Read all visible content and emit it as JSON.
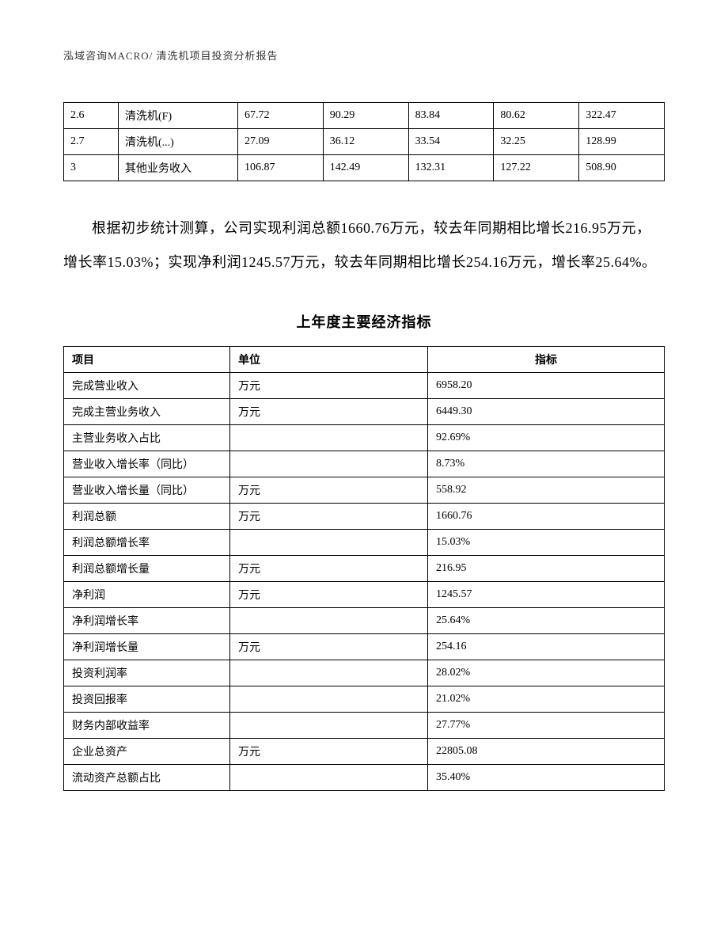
{
  "header": "泓域咨询MACRO/   清洗机项目投资分析报告",
  "table1": {
    "col_widths": [
      "64px",
      "140px",
      "100px",
      "100px",
      "100px",
      "100px",
      "100px"
    ],
    "rows": [
      [
        "2.6",
        "清洗机(F)",
        "67.72",
        "90.29",
        "83.84",
        "80.62",
        "322.47"
      ],
      [
        "2.7",
        "清洗机(...)",
        "27.09",
        "36.12",
        "33.54",
        "32.25",
        "128.99"
      ],
      [
        "3",
        "其他业务收入",
        "106.87",
        "142.49",
        "132.31",
        "127.22",
        "508.90"
      ]
    ]
  },
  "paragraph": "根据初步统计测算，公司实现利润总额1660.76万元，较去年同期相比增长216.95万元，增长率15.03%；实现净利润1245.57万元，较去年同期相比增长254.16万元，增长率25.64%。",
  "section_title": "上年度主要经济指标",
  "table2": {
    "headers": [
      "项目",
      "单位",
      "指标"
    ],
    "col_widths": [
      "210px",
      "250px",
      "auto"
    ],
    "rows": [
      [
        "完成营业收入",
        "万元",
        "6958.20"
      ],
      [
        "完成主营业务收入",
        "万元",
        "6449.30"
      ],
      [
        "主营业务收入占比",
        "",
        "92.69%"
      ],
      [
        "营业收入增长率（同比）",
        "",
        "8.73%"
      ],
      [
        "营业收入增长量（同比）",
        "万元",
        "558.92"
      ],
      [
        "利润总额",
        "万元",
        "1660.76"
      ],
      [
        "利润总额增长率",
        "",
        "15.03%"
      ],
      [
        "利润总额增长量",
        "万元",
        "216.95"
      ],
      [
        "净利润",
        "万元",
        "1245.57"
      ],
      [
        "净利润增长率",
        "",
        "25.64%"
      ],
      [
        "净利润增长量",
        "万元",
        "254.16"
      ],
      [
        "投资利润率",
        "",
        "28.02%"
      ],
      [
        "投资回报率",
        "",
        "21.02%"
      ],
      [
        "财务内部收益率",
        "",
        "27.77%"
      ],
      [
        "企业总资产",
        "万元",
        "22805.08"
      ],
      [
        "流动资产总额占比",
        "",
        "35.40%"
      ]
    ]
  }
}
